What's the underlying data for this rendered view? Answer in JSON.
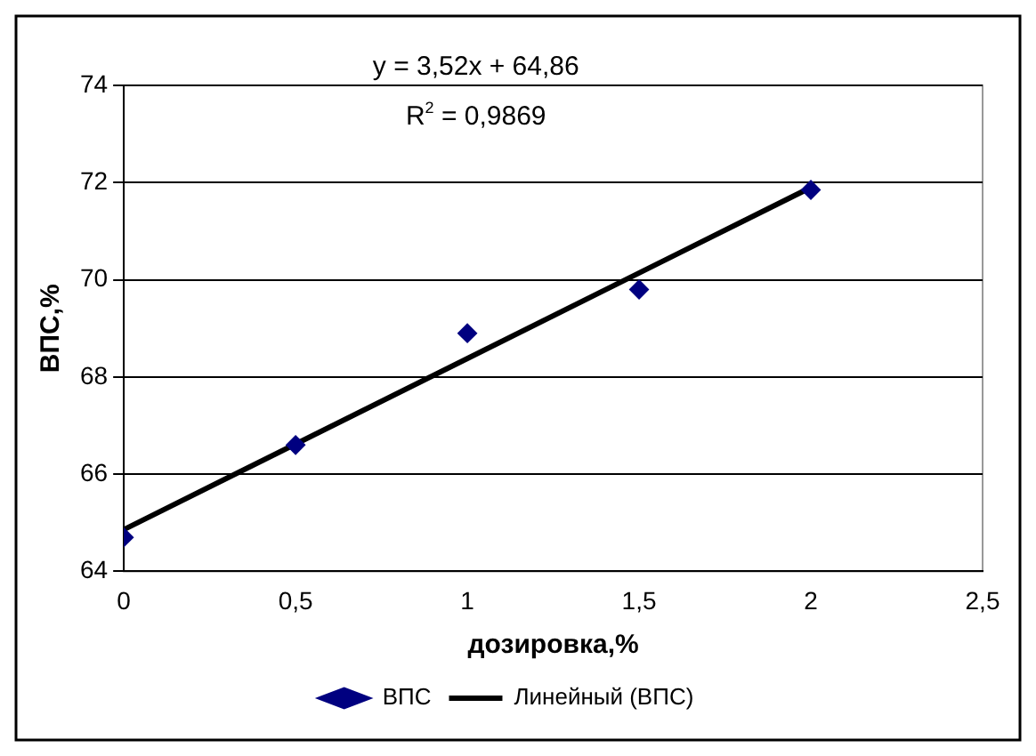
{
  "chart_data": {
    "type": "scatter",
    "xlabel": "дозировка,%",
    "ylabel": "ВПС,%",
    "annotations": [
      "y = 3,52x + 64,86",
      "R$^{2}$ = 0,9869"
    ],
    "series": [
      {
        "name": "ВПС",
        "color": "#000080",
        "x": [
          0,
          0.5,
          1,
          1.5,
          2
        ],
        "values": [
          64.7,
          66.6,
          68.9,
          69.8,
          71.85
        ],
        "marker": "diamond"
      },
      {
        "name": "Линейный (ВПС)",
        "type": "line",
        "color": "#000000",
        "x": [
          0,
          2
        ],
        "values": [
          64.86,
          71.9
        ],
        "marker": "none",
        "line_style": "solid"
      }
    ],
    "xlim": [
      0,
      2.5
    ],
    "xticks": [
      0,
      {
        "value": 0.5,
        "label": "0,5"
      },
      1,
      {
        "value": 1.5,
        "label": "1,5"
      },
      2,
      {
        "value": 2.5,
        "label": "2,5"
      }
    ],
    "ylim": [
      64,
      74
    ],
    "yticks": [
      64,
      66,
      68,
      70,
      72,
      74
    ],
    "grid": "y",
    "legend": "bottom"
  }
}
